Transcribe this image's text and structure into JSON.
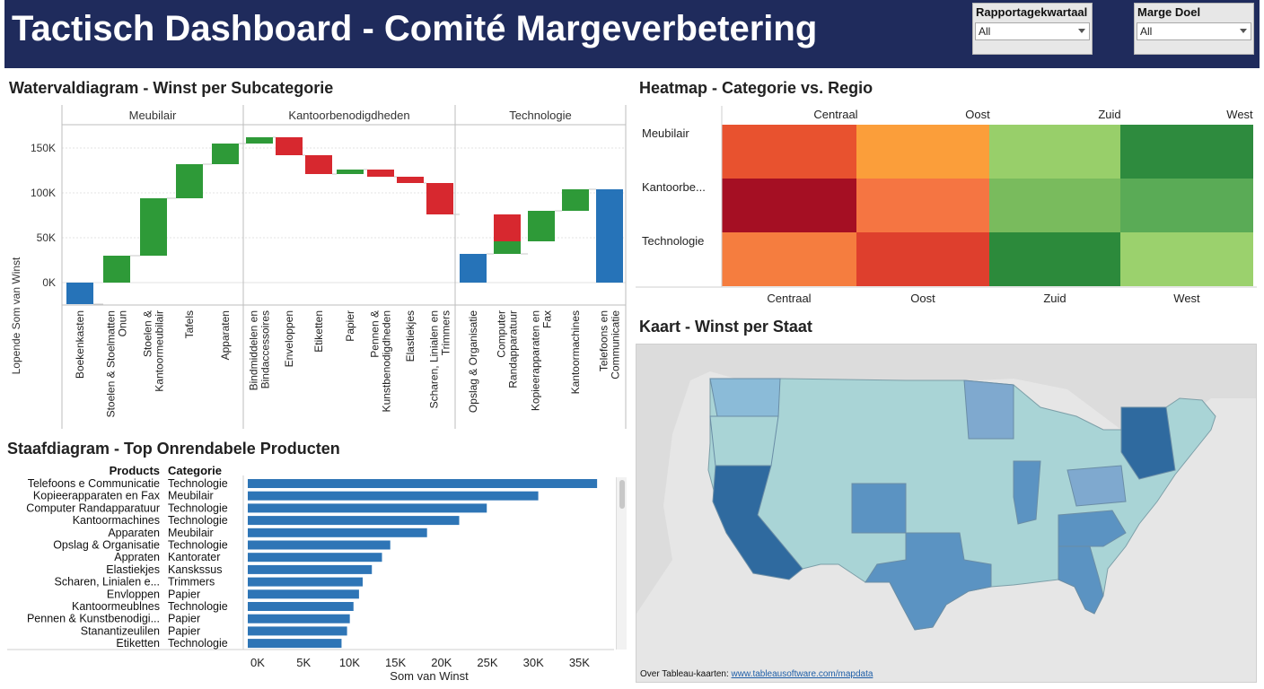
{
  "header": {
    "title": "Tactisch Dashboard - Comité Margeverbetering",
    "filters": [
      {
        "label": "Rapportagekwartaal",
        "value": "All"
      },
      {
        "label": "Marge Doel",
        "value": "All"
      }
    ]
  },
  "colors": {
    "header_bg": "#1f2b5c",
    "increase": "#2e9a38",
    "decrease": "#d7282f",
    "total": "#2673b8",
    "bar": "#2e75b6"
  },
  "waterfall": {
    "title": "Watervaldiagram - Winst per Subcategorie",
    "ylabel": "Lopende Som van Winst",
    "yticks": [
      "150K",
      "100K",
      "50K",
      "0K"
    ],
    "ytick_values": [
      150000,
      100000,
      50000,
      0
    ],
    "groups": [
      "Meubilair",
      "Kantoorbenodigdheden",
      "Technologie"
    ]
  },
  "chart_data": [
    {
      "type": "bar",
      "subtype": "waterfall",
      "title": "Watervaldiagram - Winst per Subcategorie",
      "ylabel": "Lopende Som van Winst",
      "ylim": [
        -25000,
        175000
      ],
      "categories": [
        {
          "group": "Meubilair",
          "label": [
            "Boekenkasten"
          ],
          "start": 0,
          "end": -24000,
          "kind": "total"
        },
        {
          "group": "Meubilair",
          "label": [
            "Stoelen & Stoelmatten",
            "Onun"
          ],
          "start": 0,
          "end": 30000,
          "kind": "increase"
        },
        {
          "group": "Meubilair",
          "label": [
            "Stoelen &",
            "Kantoormeubilair"
          ],
          "start": 30000,
          "end": 94000,
          "kind": "increase"
        },
        {
          "group": "Meubilair",
          "label": [
            "Tafels"
          ],
          "start": 94000,
          "end": 132000,
          "kind": "increase"
        },
        {
          "group": "Meubilair",
          "label": [
            "Apparaten"
          ],
          "start": 132000,
          "end": 155000,
          "kind": "increase"
        },
        {
          "group": "Kantoorbenodigdheden",
          "label": [
            "Bindmiddelen en",
            "Bindaccessoires"
          ],
          "start": 155000,
          "end": 162000,
          "kind": "increase"
        },
        {
          "group": "Kantoorbenodigdheden",
          "label": [
            "Enveloppen"
          ],
          "start": 162000,
          "end": 142000,
          "kind": "decrease"
        },
        {
          "group": "Kantoorbenodigdheden",
          "label": [
            "Etiketten"
          ],
          "start": 142000,
          "end": 121000,
          "kind": "decrease"
        },
        {
          "group": "Kantoorbenodigdheden",
          "label": [
            "Papier"
          ],
          "start": 121000,
          "end": 126000,
          "kind": "increase"
        },
        {
          "group": "Kantoorbenodigdheden",
          "label": [
            "Pennen &",
            "Kunstbenodigdheden"
          ],
          "start": 126000,
          "end": 118000,
          "kind": "decrease"
        },
        {
          "group": "Kantoorbenodigdheden",
          "label": [
            "Elastiekjes"
          ],
          "start": 118000,
          "end": 111000,
          "kind": "decrease"
        },
        {
          "group": "Kantoorbenodigdheden",
          "label": [
            "Scharen, Linialen en",
            "Trimmers"
          ],
          "start": 111000,
          "end": 76000,
          "kind": "decrease"
        },
        {
          "group": "Technologie",
          "label": [
            "Opslag & Organisatie"
          ],
          "start": 0,
          "end": 32000,
          "kind": "total"
        },
        {
          "group": "Technologie",
          "label": [
            "Computer",
            "Randapparatuur"
          ],
          "start": 76000,
          "end": 32000,
          "kind": "decrease",
          "extra": {
            "start": 32000,
            "end": 46000
          }
        },
        {
          "group": "Technologie",
          "label": [
            "Kopieerapparaten en",
            "Fax"
          ],
          "start": 46000,
          "end": 80000,
          "kind": "increase"
        },
        {
          "group": "Technologie",
          "label": [
            "Kantoormachines"
          ],
          "start": 80000,
          "end": 104000,
          "kind": "increase"
        },
        {
          "group": "Technologie",
          "label": [
            "Telefoons en",
            "Communicatie"
          ],
          "start": 0,
          "end": 104000,
          "kind": "total"
        }
      ]
    },
    {
      "type": "heatmap",
      "title": "Heatmap - Categorie vs. Regio",
      "columns": [
        "Centraal",
        "Oost",
        "Zuid",
        "West"
      ],
      "rows": [
        "Meubilair",
        "Kantoorbe...",
        "Technologie"
      ],
      "cell_colors": [
        [
          "#e8522f",
          "#fb9e3a",
          "#98cf6a",
          "#2e8b3e"
        ],
        [
          "#a50f23",
          "#f57542",
          "#79bb5d",
          "#5aab56"
        ],
        [
          "#f57d3f",
          "#de3f2d",
          "#2c8a3b",
          "#9bd16d"
        ]
      ]
    },
    {
      "type": "bar",
      "orientation": "horizontal",
      "title": "Staafdiagram - Top Onrendabele Producten",
      "xlabel": "Som van Winst",
      "xlim": [
        0,
        38000
      ],
      "xticks": [
        "0K",
        "5K",
        "10K",
        "15K",
        "20K",
        "25K",
        "30K",
        "35K"
      ],
      "headers": [
        "Products",
        "Categorie"
      ],
      "rows": [
        {
          "product": "Telefoons e Communicatie",
          "category": "Technologie",
          "value": 38000
        },
        {
          "product": "Kopieerapparaten en Fax",
          "category": "Meubilair",
          "value": 31600
        },
        {
          "product": "Computer Randapparatuur",
          "category": "Technologie",
          "value": 26000
        },
        {
          "product": "Kantoormachines",
          "category": "Technologie",
          "value": 23000
        },
        {
          "product": "Apparaten",
          "category": "Meubilair",
          "value": 19500
        },
        {
          "product": "Opslag & Organisatie",
          "category": "Technologie",
          "value": 15500
        },
        {
          "product": "Appraten",
          "category": "Kantorater",
          "value": 14600
        },
        {
          "product": "Elastiekjes",
          "category": "Kanskssus",
          "value": 13500
        },
        {
          "product": "Scharen, Linialen e...",
          "category": "Trimmers",
          "value": 12500
        },
        {
          "product": "Envloppen",
          "category": "Papier",
          "value": 12100
        },
        {
          "product": "Kantoormeublnes",
          "category": "Technologie",
          "value": 11500
        },
        {
          "product": "Pennen & Kunstbenodigi...",
          "category": "Papier",
          "value": 11100
        },
        {
          "product": "Stanantizeulilen",
          "category": "Papier",
          "value": 10800
        },
        {
          "product": "Etiketten",
          "category": "Technologie",
          "value": 10200
        }
      ]
    }
  ],
  "heatmap": {
    "title": "Heatmap - Categorie vs. Regio",
    "top_labels": [
      "Centraal",
      "Oost",
      "Zuid",
      "West"
    ],
    "bottom_labels": [
      "Centraal",
      "Oost",
      "Zuid",
      "West"
    ]
  },
  "bars": {
    "title": "Staafdiagram - Top Onrendabele Producten",
    "header_products": "Products",
    "header_category": "Categorie",
    "xlabel": "Som van Winst",
    "ticks": [
      "0K",
      "5K",
      "10K",
      "15K",
      "20K",
      "25K",
      "30K",
      "35K"
    ],
    "tick_first_override": "0K"
  },
  "map": {
    "title": "Kaart - Winst per Staat",
    "credit_prefix": "Over Tableau-kaarten: ",
    "credit_link": "www.tableausoftware.com/mapdata"
  }
}
